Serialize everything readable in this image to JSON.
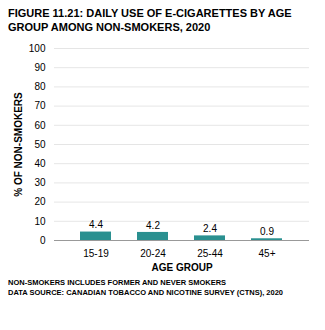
{
  "chart_data": {
    "type": "bar",
    "title": "FIGURE 11.21: DAILY USE OF E-CIGARETTES BY AGE GROUP AMONG NON-SMOKERS, 2020",
    "categories": [
      "15-19",
      "20-24",
      "25-44",
      "45+"
    ],
    "values": [
      4.4,
      4.2,
      2.4,
      0.9
    ],
    "color": "#2a9090",
    "xlabel": "AGE GROUP",
    "ylabel": "% OF NON-SMOKERS",
    "ylim": [
      0,
      100
    ],
    "yticks": [
      0,
      10,
      20,
      30,
      40,
      50,
      60,
      70,
      80,
      90,
      100
    ],
    "grid": true,
    "data_labels": true,
    "annotations": [
      "NON-SMOKERS INCLUDES FORMER AND NEVER SMOKERS",
      "DATA SOURCE: CANADIAN TOBACCO AND NICOTINE SURVEY (CTNS), 2020"
    ]
  }
}
